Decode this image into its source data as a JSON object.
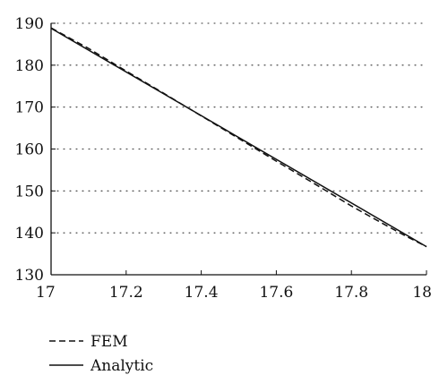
{
  "chart_data": {
    "type": "line",
    "title": "",
    "xlabel": "",
    "ylabel": "",
    "xlim": [
      17,
      18
    ],
    "ylim": [
      130,
      190
    ],
    "xticks": [
      "17",
      "17.2",
      "17.4",
      "17.6",
      "17.8",
      "18"
    ],
    "yticks": [
      "190",
      "180",
      "170",
      "160",
      "150",
      "140",
      "130"
    ],
    "grid": "horizontal-dotted",
    "legend_position": "bottom-left",
    "series": [
      {
        "name": "FEM",
        "style": "dashed",
        "color": "#111111",
        "x": [
          17.0,
          17.1,
          17.2,
          17.3,
          17.4,
          17.5,
          17.6,
          17.7,
          17.8,
          17.9,
          17.95,
          18.0
        ],
        "y": [
          188.9,
          184.0,
          178.6,
          173.3,
          167.9,
          162.5,
          157.1,
          151.8,
          146.4,
          141.4,
          139.0,
          136.7
        ]
      },
      {
        "name": "Analytic",
        "style": "solid",
        "color": "#111111",
        "x": [
          17.0,
          18.0
        ],
        "y": [
          188.8,
          136.7
        ]
      }
    ]
  }
}
